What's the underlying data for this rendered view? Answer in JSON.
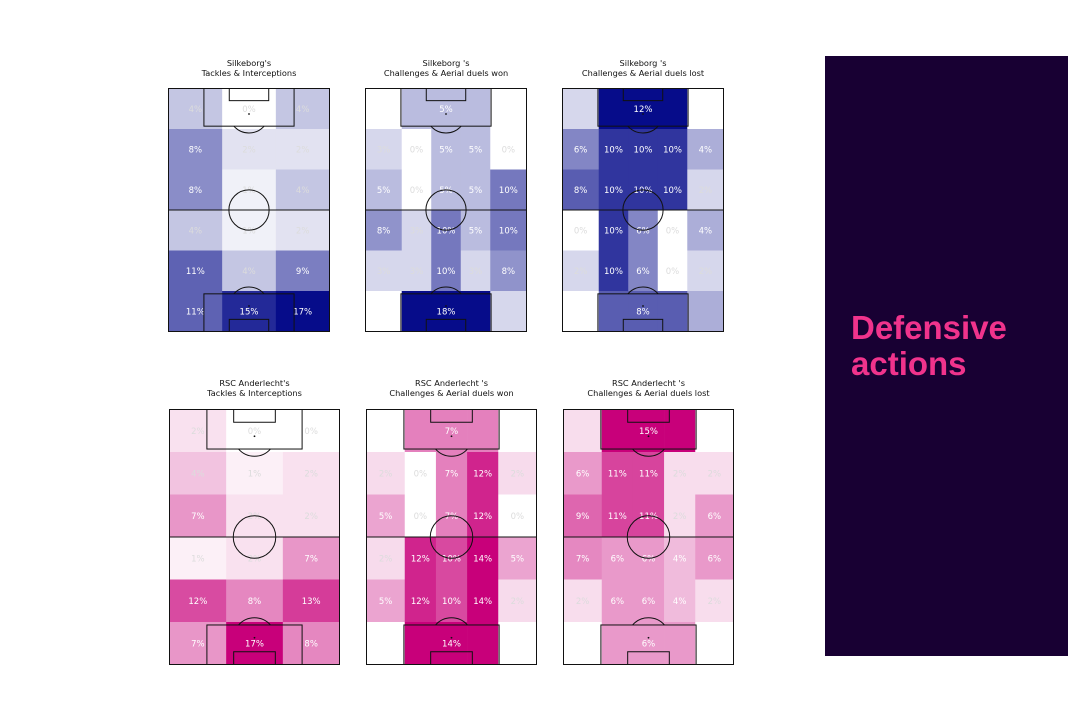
{
  "side_panel": {
    "title": "Defensive\nactions",
    "background": "#180033",
    "accent": "#f0338c"
  },
  "chart_data": [
    {
      "type": "heatmap",
      "team": "Silkeborg",
      "colormap": "blue",
      "title_line1": "Silkeborg's",
      "title_line2": "Tackles & Interceptions",
      "columns": 3,
      "rows": 6,
      "grid": [
        [
          4,
          0,
          4
        ],
        [
          8,
          2,
          2
        ],
        [
          8,
          1,
          4
        ],
        [
          4,
          1,
          2
        ],
        [
          11,
          4,
          9
        ],
        [
          11,
          15,
          17
        ]
      ]
    },
    {
      "type": "heatmap",
      "team": "Silkeborg",
      "colormap": "blue",
      "title_line1": "Silkeborg 's",
      "title_line2": "Challenges & Aerial duels won",
      "columns": 5,
      "rows": 6,
      "grid": [
        [
          0,
          5,
          5,
          5,
          0
        ],
        [
          3,
          0,
          5,
          5,
          0
        ],
        [
          5,
          0,
          5,
          5,
          10
        ],
        [
          8,
          3,
          10,
          5,
          10
        ],
        [
          3,
          3,
          10,
          3,
          8
        ],
        [
          0,
          18,
          18,
          18,
          3
        ]
      ]
    },
    {
      "type": "heatmap",
      "team": "Silkeborg",
      "colormap": "blue",
      "title_line1": "Silkeborg 's",
      "title_line2": "Challenges & Aerial duels lost",
      "columns": 5,
      "rows": 6,
      "grid": [
        [
          2,
          12,
          12,
          12,
          0
        ],
        [
          6,
          10,
          10,
          10,
          4
        ],
        [
          8,
          10,
          10,
          10,
          2
        ],
        [
          0,
          10,
          6,
          0,
          4
        ],
        [
          2,
          10,
          6,
          0,
          2
        ],
        [
          0,
          8,
          8,
          8,
          4
        ]
      ]
    },
    {
      "type": "heatmap",
      "team": "RSC Anderlecht",
      "colormap": "pink",
      "title_line1": "RSC Anderlecht's",
      "title_line2": "Tackles & Interceptions",
      "columns": 3,
      "rows": 6,
      "grid": [
        [
          2,
          0,
          0
        ],
        [
          4,
          1,
          2
        ],
        [
          7,
          2,
          2
        ],
        [
          1,
          2,
          7
        ],
        [
          12,
          8,
          13
        ],
        [
          7,
          17,
          8
        ]
      ]
    },
    {
      "type": "heatmap",
      "team": "RSC Anderlecht",
      "colormap": "pink",
      "title_line1": "RSC Anderlecht 's",
      "title_line2": "Challenges & Aerial duels won",
      "columns": 5,
      "rows": 6,
      "grid": [
        [
          0,
          7,
          7,
          7,
          0
        ],
        [
          2,
          0,
          7,
          12,
          2
        ],
        [
          5,
          0,
          7,
          12,
          0
        ],
        [
          2,
          12,
          10,
          14,
          5
        ],
        [
          5,
          12,
          10,
          14,
          2
        ],
        [
          0,
          14,
          14,
          14,
          0
        ]
      ]
    },
    {
      "type": "heatmap",
      "team": "RSC Anderlecht",
      "colormap": "pink",
      "title_line1": "RSC Anderlecht 's",
      "title_line2": "Challenges & Aerial duels lost",
      "columns": 5,
      "rows": 6,
      "grid": [
        [
          2,
          15,
          15,
          15,
          0
        ],
        [
          6,
          11,
          11,
          2,
          2
        ],
        [
          9,
          11,
          11,
          2,
          6
        ],
        [
          7,
          6,
          6,
          4,
          6
        ],
        [
          2,
          6,
          6,
          4,
          2
        ],
        [
          0,
          6,
          6,
          6,
          0
        ]
      ]
    }
  ]
}
